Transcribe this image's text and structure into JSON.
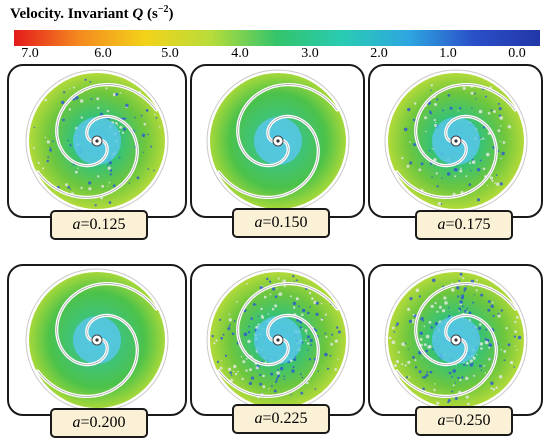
{
  "title": {
    "prefix": "Velocity. Invariant ",
    "symbol": "Q",
    "unit_open": " (s",
    "unit_exp": "−2",
    "unit_close": ")"
  },
  "colorbar": {
    "ticks": [
      "7.0",
      "6.0",
      "5.0",
      "4.0",
      "3.0",
      "2.0",
      "1.0",
      "0.0"
    ],
    "gradient": [
      "#e41a1c",
      "#f58a1f",
      "#f3d31a",
      "#b7dc3a",
      "#33c46b",
      "#29cbb3",
      "#2ea6e0",
      "#2a4fc8",
      "#2237a8"
    ]
  },
  "panels": [
    {
      "param_symbol": "a",
      "param_value": "=0.125",
      "style": "vortex"
    },
    {
      "param_symbol": "a",
      "param_value": "=0.150",
      "style": "smooth"
    },
    {
      "param_symbol": "a",
      "param_value": "=0.175",
      "style": "vortex"
    },
    {
      "param_symbol": "a",
      "param_value": "=0.200",
      "style": "smooth"
    },
    {
      "param_symbol": "a",
      "param_value": "=0.225",
      "style": "turbulent"
    },
    {
      "param_symbol": "a",
      "param_value": "=0.250",
      "style": "turbulent"
    }
  ]
}
